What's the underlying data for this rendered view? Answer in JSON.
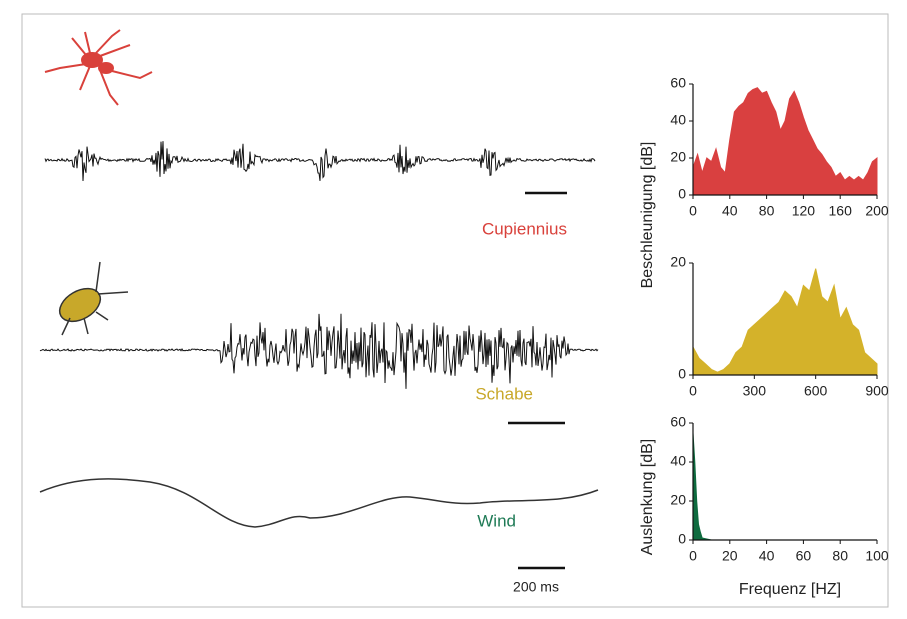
{
  "traces": [
    {
      "label": "Cupiennius",
      "color": "#d9413b"
    },
    {
      "label": "Schabe",
      "color": "#c8a82a"
    },
    {
      "label": "Wind",
      "color": "#1e7a55"
    }
  ],
  "scale_label": "200 ms",
  "chart_data": [
    {
      "type": "area",
      "color": "#d94040",
      "y_label": "Beschleunigung  [dB]",
      "x": [
        0,
        5,
        10,
        15,
        20,
        25,
        30,
        35,
        40,
        45,
        50,
        55,
        60,
        65,
        70,
        75,
        80,
        85,
        90,
        95,
        100,
        105,
        110,
        115,
        120,
        125,
        130,
        135,
        140,
        145,
        150,
        155,
        160,
        165,
        170,
        175,
        180,
        185,
        190,
        195,
        200
      ],
      "values": [
        15,
        22,
        12,
        20,
        18,
        25,
        15,
        12,
        30,
        45,
        48,
        50,
        55,
        57,
        58,
        55,
        56,
        50,
        45,
        35,
        40,
        52,
        56,
        50,
        42,
        35,
        30,
        25,
        22,
        18,
        15,
        10,
        12,
        8,
        10,
        8,
        10,
        8,
        12,
        18,
        20
      ],
      "xlim": [
        0,
        200
      ],
      "ylim": [
        0,
        60
      ],
      "xticks": [
        0,
        40,
        80,
        120,
        160,
        200
      ],
      "yticks": [
        0,
        20,
        40,
        60
      ]
    },
    {
      "type": "area",
      "color": "#d4b22a",
      "x": [
        0,
        30,
        60,
        90,
        120,
        150,
        180,
        210,
        240,
        270,
        300,
        330,
        360,
        390,
        420,
        450,
        480,
        510,
        540,
        570,
        600,
        630,
        660,
        690,
        720,
        750,
        780,
        810,
        840,
        870,
        900
      ],
      "values": [
        5,
        3,
        2,
        1,
        0.5,
        1,
        2,
        4,
        5,
        8,
        9,
        10,
        11,
        12,
        13,
        15,
        14,
        12,
        16,
        15,
        19,
        14,
        13,
        16,
        10,
        12,
        9,
        8,
        4,
        3,
        2
      ],
      "xlim": [
        0,
        900
      ],
      "ylim": [
        0,
        20
      ],
      "xticks": [
        0,
        300,
        600,
        900
      ],
      "yticks": [
        0,
        20
      ]
    },
    {
      "type": "area",
      "color": "#0f6b3f",
      "y_label": "Auslenkung [dB]",
      "x_label": "Frequenz [HZ]",
      "x": [
        0,
        1,
        2,
        3,
        4,
        5,
        10,
        100
      ],
      "values": [
        55,
        40,
        20,
        8,
        4,
        1,
        0,
        0
      ],
      "xlim": [
        0,
        100
      ],
      "ylim": [
        0,
        60
      ],
      "xticks": [
        0,
        20,
        40,
        60,
        80,
        100
      ],
      "yticks": [
        0,
        20,
        40,
        60
      ]
    }
  ]
}
